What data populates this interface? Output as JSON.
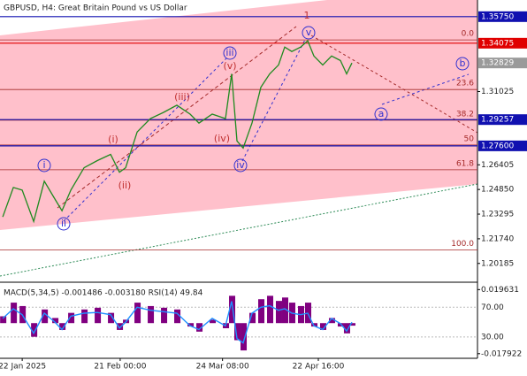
{
  "chart_data": [
    {
      "type": "line",
      "title": "GBPUSD, H4:  Great Britain Pound vs US Dollar",
      "x": [
        -5.95,
        -2.71,
        0,
        3.52,
        6.77,
        10.01,
        12.18,
        14.88,
        18.94,
        23,
        27.06,
        29.77,
        31.66,
        35.18,
        39.24,
        43.3,
        47.36,
        51.42,
        54.13,
        58.19,
        62.25,
        64.14,
        65.76,
        67.66,
        70.37,
        73.07,
        75.78,
        78.48,
        80.38,
        82.54,
        85.25,
        87.42,
        89.31,
        92.02,
        94.72,
        97.43,
        99.32,
        100.95
      ],
      "series": [
        {
          "color": "#1f8a1f",
          "values": [
            1.23116,
            1.24978,
            1.24808,
            1.22834,
            1.25372,
            1.24244,
            1.23511,
            1.24808,
            1.26218,
            1.2667,
            1.27064,
            1.25936,
            1.26218,
            1.28474,
            1.2932,
            1.29715,
            1.30166,
            1.29602,
            1.29038,
            1.29602,
            1.2932,
            1.3214,
            1.2791,
            1.27459,
            1.29038,
            1.31294,
            1.3214,
            1.32704,
            1.33832,
            1.3355,
            1.33832,
            1.34227,
            1.33268,
            1.32704,
            1.33268,
            1.32986,
            1.3214,
            1.32829
          ]
        }
      ],
      "xlim": [
        -6.8,
        139.4
      ],
      "xticks": [
        {
          "value": 0,
          "label": "22 Jan 2025"
        },
        {
          "value": 30,
          "label": "21 Feb 00:00"
        },
        {
          "value": 61.33,
          "label": "24 Mar 08:00"
        },
        {
          "value": 90.67,
          "label": "22 Apr 16:00"
        }
      ],
      "ylim": [
        1.19,
        1.368
      ],
      "yticks": [
        1.31025,
        1.26405,
        {
          "value": 1.2485,
          "label": "1.24850"
        },
        1.23295,
        {
          "value": 1.2174,
          "label": "1.21740"
        },
        1.20185
      ],
      "levels": [
        {
          "value": 1.3575,
          "label": "1.35750",
          "color": "#1010b0"
        },
        {
          "value": 1.34075,
          "label": "1.34075",
          "color": "#e00000"
        },
        {
          "value": 1.29257,
          "label": "1.29257",
          "color": "#1010b0"
        },
        {
          "value": 1.276,
          "label": "1.27600",
          "color": "#1010b0"
        }
      ],
      "last": {
        "value": 1.32829,
        "label": "1.32829",
        "color": "#9a9a9a"
      },
      "fib": {
        "top": 1.3428,
        "bottom": 1.2103,
        "color": "#a52a2a",
        "levels": [
          {
            "value": 0,
            "label": "0.0"
          },
          23.6,
          38.2,
          50.0,
          61.8,
          {
            "value": 100,
            "label": "100.0"
          }
        ]
      },
      "annotations": [
        "1",
        "i",
        "ii",
        "iii",
        "iv",
        "v",
        "(i)",
        "(ii)",
        "(iii)",
        "(iv)",
        "(v)",
        "a",
        "b"
      ]
    },
    {
      "type": "macd",
      "header": "MACD(5,34,5) -0.001486 -0.003180 RSI(14) 49.84",
      "x": [
        -5.95,
        -2.71,
        0,
        3.52,
        6.77,
        10.01,
        12.18,
        14.88,
        18.94,
        23,
        27.06,
        29.77,
        31.66,
        35.18,
        39.24,
        43.3,
        47.36,
        51.42,
        54.13,
        58.19,
        62.25,
        64.14,
        65.76,
        67.66,
        70.37,
        73.07,
        75.78,
        78.48,
        80.38,
        82.54,
        85.25,
        87.42,
        89.31,
        92.02,
        94.72,
        97.43,
        99.32,
        100.95
      ],
      "xlim": [
        -6.8,
        139.4
      ],
      "ylim": [
        -0.0201,
        0.02344
      ],
      "yticks": [
        0.019631,
        -0.017922
      ],
      "y2lim": [
        2.5,
        102.5
      ],
      "y2ticks": [
        {
          "value": 70,
          "label": "70.00"
        },
        {
          "value": 30,
          "label": "30.00"
        }
      ],
      "series": [
        {
          "color": "#800080",
          "values": [
            0.004,
            0.012,
            0.01,
            -0.008,
            0.008,
            0.003,
            -0.004,
            0.006,
            0.008,
            0.009,
            0.006,
            -0.004,
            0.002,
            0.012,
            0.01,
            0.009,
            0.008,
            -0.002,
            -0.005,
            0.002,
            -0.003,
            0.016,
            -0.01,
            -0.016,
            0.006,
            0.014,
            0.016,
            0.013,
            0.015,
            0.012,
            0.01,
            0.012,
            -0.002,
            -0.004,
            0.003,
            -0.002,
            -0.006,
            -0.001486
          ]
        },
        {
          "color": "#1e90ff",
          "axis": "y2",
          "values": [
            55,
            68,
            60,
            35,
            62,
            50,
            40,
            58,
            62,
            63,
            60,
            42,
            50,
            70,
            66,
            64,
            62,
            45,
            40,
            55,
            45,
            78,
            28,
            22,
            62,
            70,
            72,
            66,
            68,
            62,
            60,
            62,
            45,
            40,
            55,
            48,
            38,
            49.84
          ]
        }
      ]
    }
  ]
}
